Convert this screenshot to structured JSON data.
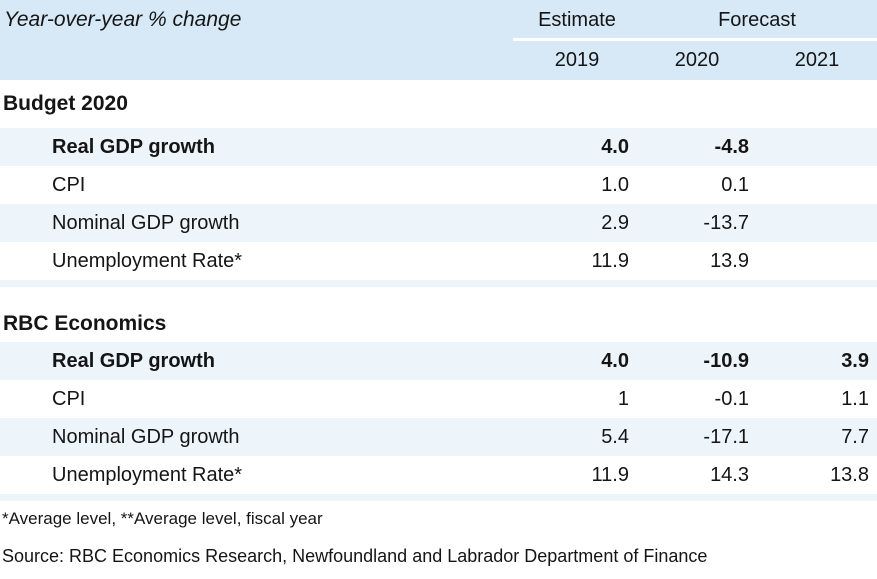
{
  "title": "Year-over-year % change",
  "header": {
    "estimate_label": "Estimate",
    "forecast_label": "Forecast",
    "years": [
      "2019",
      "2020",
      "2021"
    ]
  },
  "sections": [
    {
      "name": "Budget 2020",
      "rows": [
        {
          "label": "Real GDP growth",
          "values": [
            "4.0",
            "-4.8",
            ""
          ]
        },
        {
          "label": "CPI",
          "values": [
            "1.0",
            "0.1",
            ""
          ]
        },
        {
          "label": "Nominal GDP growth",
          "values": [
            "2.9",
            "-13.7",
            ""
          ]
        },
        {
          "label": "Unemployment Rate*",
          "values": [
            "11.9",
            "13.9",
            ""
          ]
        }
      ]
    },
    {
      "name": "RBC Economics",
      "rows": [
        {
          "label": "Real GDP growth",
          "values": [
            "4.0",
            "-10.9",
            "3.9"
          ]
        },
        {
          "label": "CPI",
          "values": [
            "1",
            "-0.1",
            "1.1"
          ]
        },
        {
          "label": "Nominal GDP growth",
          "values": [
            "5.4",
            "-17.1",
            "7.7"
          ]
        },
        {
          "label": "Unemployment Rate*",
          "values": [
            "11.9",
            "14.3",
            "13.8"
          ]
        }
      ]
    }
  ],
  "footnote": "*Average level, **Average level, fiscal year",
  "source": "Source: RBC Economics Research, Newfoundland and Labrador Department of Finance",
  "colors": {
    "header_bg": "#D7E9F7",
    "row_stripe": "#EDF5FB",
    "text": "#151515",
    "header_divider": "#FFFFFF"
  },
  "chart_data": {
    "type": "table",
    "title": "Year-over-year % change",
    "column_groups": [
      "Estimate",
      "Forecast"
    ],
    "columns": [
      "2019",
      "2020",
      "2021"
    ],
    "sections": [
      {
        "name": "Budget 2020",
        "rows": [
          {
            "label": "Real GDP growth",
            "2019": 4.0,
            "2020": -4.8,
            "2021": null
          },
          {
            "label": "CPI",
            "2019": 1.0,
            "2020": 0.1,
            "2021": null
          },
          {
            "label": "Nominal GDP growth",
            "2019": 2.9,
            "2020": -13.7,
            "2021": null
          },
          {
            "label": "Unemployment Rate*",
            "2019": 11.9,
            "2020": 13.9,
            "2021": null
          }
        ]
      },
      {
        "name": "RBC Economics",
        "rows": [
          {
            "label": "Real GDP growth",
            "2019": 4.0,
            "2020": -10.9,
            "2021": 3.9
          },
          {
            "label": "CPI",
            "2019": 1,
            "2020": -0.1,
            "2021": 1.1
          },
          {
            "label": "Nominal GDP growth",
            "2019": 5.4,
            "2020": -17.1,
            "2021": 7.7
          },
          {
            "label": "Unemployment Rate*",
            "2019": 11.9,
            "2020": 14.3,
            "2021": 13.8
          }
        ]
      }
    ],
    "footnote": "*Average level, **Average level, fiscal year",
    "source": "Source: RBC Economics Research, Newfoundland and Labrador Department of Finance"
  }
}
